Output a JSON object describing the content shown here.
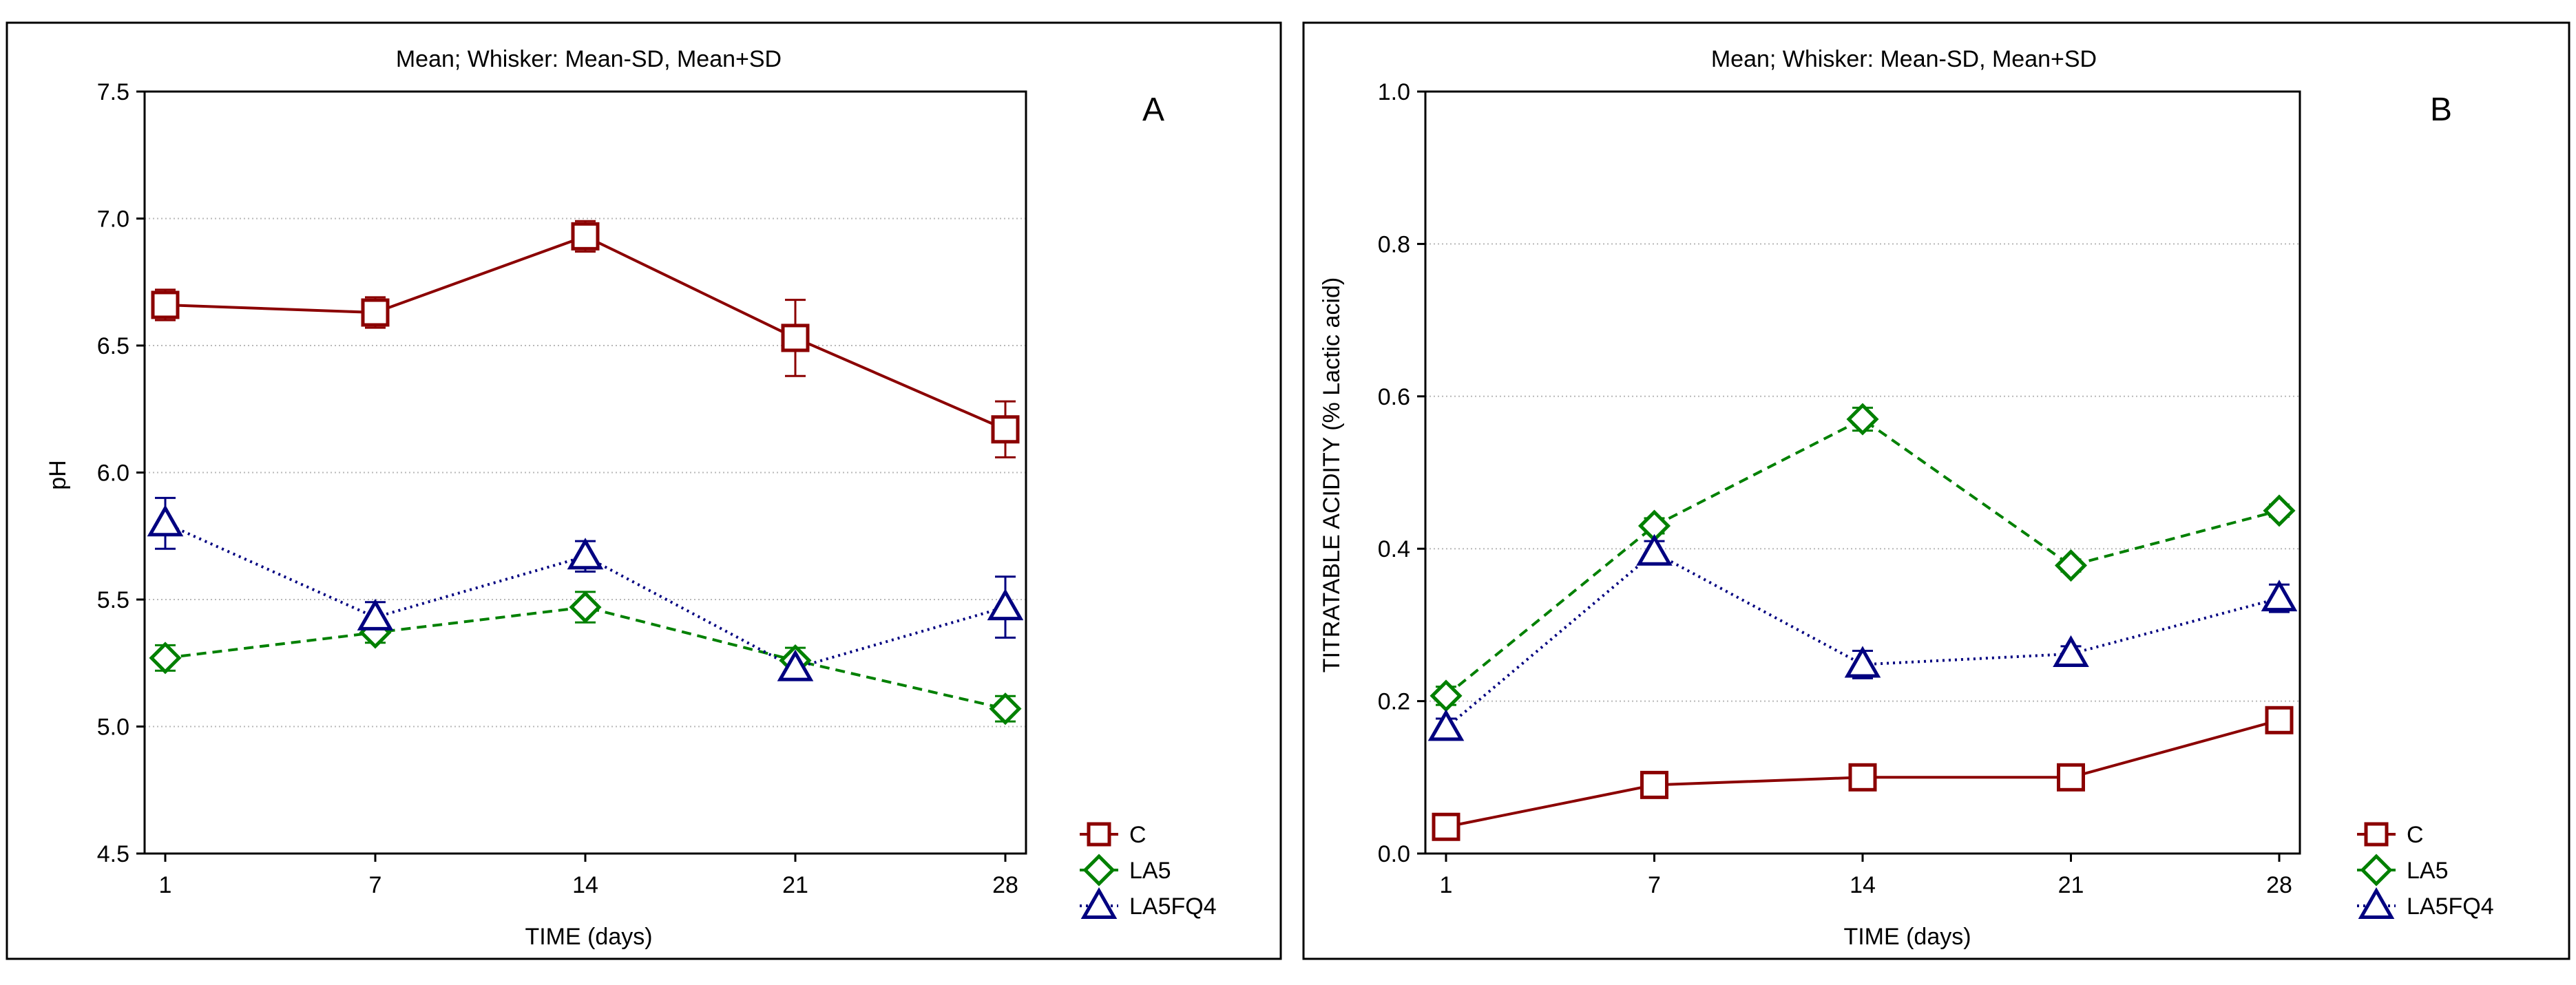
{
  "figure": {
    "panels": [
      "A",
      "B"
    ]
  },
  "chart_data": [
    {
      "type": "line",
      "panel_label": "A",
      "title": "Mean;  Whisker: Mean-SD, Mean+SD",
      "xlabel": "TIME (days)",
      "ylabel": "pH",
      "categories": [
        "1",
        "7",
        "14",
        "21",
        "28"
      ],
      "ylim": [
        4.5,
        7.5
      ],
      "yticks": [
        "4.5",
        "5.0",
        "5.5",
        "6.0",
        "6.5",
        "7.0",
        "7.5"
      ],
      "grid": true,
      "legend_position": "bottom-right",
      "series": [
        {
          "name": "C",
          "color": "#8b0000",
          "marker": "square",
          "dash": "solid",
          "values": [
            6.66,
            6.63,
            6.93,
            6.53,
            6.17
          ],
          "sd": [
            0.06,
            0.06,
            0.06,
            0.15,
            0.11
          ]
        },
        {
          "name": "LA5",
          "color": "#008000",
          "marker": "diamond",
          "dash": "dashed",
          "values": [
            5.27,
            5.37,
            5.47,
            5.26,
            5.07
          ],
          "sd": [
            0.05,
            0.04,
            0.06,
            0.05,
            0.05
          ]
        },
        {
          "name": "LA5FQ4",
          "color": "#000080",
          "marker": "triangle",
          "dash": "dotted",
          "values": [
            5.8,
            5.43,
            5.67,
            5.23,
            5.47
          ],
          "sd": [
            0.1,
            0.06,
            0.06,
            0.04,
            0.12
          ]
        }
      ]
    },
    {
      "type": "line",
      "panel_label": "B",
      "title": "Mean;  Whisker: Mean-SD, Mean+SD",
      "xlabel": "TIME (days)",
      "ylabel": "TITRATABLE ACIDITY (% Lactic acid)",
      "categories": [
        "1",
        "7",
        "14",
        "21",
        "28"
      ],
      "ylim": [
        0.0,
        1.0
      ],
      "yticks": [
        "0.0",
        "0.2",
        "0.4",
        "0.6",
        "0.8",
        "1.0"
      ],
      "grid": true,
      "legend_position": "bottom-right",
      "series": [
        {
          "name": "C",
          "color": "#8b0000",
          "marker": "square",
          "dash": "solid",
          "values": [
            0.035,
            0.09,
            0.1,
            0.1,
            0.175
          ],
          "sd": [
            0.005,
            0.005,
            0.005,
            0.005,
            0.005
          ]
        },
        {
          "name": "LA5",
          "color": "#008000",
          "marker": "diamond",
          "dash": "dashed",
          "values": [
            0.207,
            0.43,
            0.57,
            0.378,
            0.45
          ],
          "sd": [
            0.012,
            0.01,
            0.015,
            0.008,
            0.008
          ]
        },
        {
          "name": "LA5FQ4",
          "color": "#000080",
          "marker": "triangle",
          "dash": "dotted",
          "values": [
            0.165,
            0.395,
            0.248,
            0.262,
            0.335
          ],
          "sd": [
            0.012,
            0.015,
            0.018,
            0.01,
            0.018
          ]
        }
      ]
    }
  ]
}
